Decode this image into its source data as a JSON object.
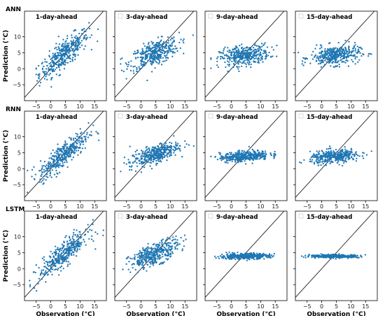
{
  "figure": {
    "colors": {
      "point": "#1f77b4",
      "identity_line": "#222222",
      "frame": "#000000",
      "legend_box": "#cccccc"
    },
    "xlabel": "Observation (°C)",
    "ylabel": "Prediction (°C)"
  },
  "chart_data": {
    "type": "scatter",
    "shared_axes": {
      "xlim": [
        -9,
        19
      ],
      "ylim": [
        -10,
        18
      ],
      "xticks": [
        -5,
        0,
        5,
        10,
        15
      ],
      "yticks": [
        -5,
        0,
        5,
        10
      ],
      "grid": false
    },
    "reference_line": "y = x",
    "rows": [
      {
        "model": "ANN",
        "panels": [
          {
            "title": "1-day-ahead",
            "fit": {
              "slope": 0.72,
              "intercept": 1.3,
              "noise": 2.1
            },
            "x_range": [
              -5,
              18
            ]
          },
          {
            "title": "3-day-ahead",
            "fit": {
              "slope": 0.32,
              "intercept": 3.3,
              "noise": 1.9
            },
            "x_range": [
              -7,
              18
            ]
          },
          {
            "title": "9-day-ahead",
            "fit": {
              "slope": 0.12,
              "intercept": 3.6,
              "noise": 1.5
            },
            "x_range": [
              -7,
              18
            ]
          },
          {
            "title": "15-day-ahead",
            "fit": {
              "slope": 0.08,
              "intercept": 3.8,
              "noise": 1.5
            },
            "x_range": [
              -8,
              18
            ]
          }
        ]
      },
      {
        "model": "RNN",
        "panels": [
          {
            "title": "1-day-ahead",
            "fit": {
              "slope": 0.72,
              "intercept": 1.2,
              "noise": 1.9
            },
            "x_range": [
              -8,
              18
            ]
          },
          {
            "title": "3-day-ahead",
            "fit": {
              "slope": 0.3,
              "intercept": 3.1,
              "noise": 1.4
            },
            "x_range": [
              -7,
              18
            ]
          },
          {
            "title": "9-day-ahead",
            "fit": {
              "slope": 0.07,
              "intercept": 3.6,
              "noise": 0.8
            },
            "x_range": [
              -7,
              15
            ]
          },
          {
            "title": "15-day-ahead",
            "fit": {
              "slope": 0.08,
              "intercept": 3.5,
              "noise": 1.0
            },
            "x_range": [
              -8,
              18
            ]
          }
        ]
      },
      {
        "model": "LSTM",
        "panels": [
          {
            "title": "1-day-ahead",
            "fit": {
              "slope": 0.68,
              "intercept": 1.5,
              "noise": 1.9
            },
            "x_range": [
              -8,
              18
            ]
          },
          {
            "title": "3-day-ahead",
            "fit": {
              "slope": 0.35,
              "intercept": 3.0,
              "noise": 1.6
            },
            "x_range": [
              -7,
              18
            ]
          },
          {
            "title": "9-day-ahead",
            "fit": {
              "slope": 0.02,
              "intercept": 3.8,
              "noise": 0.45
            },
            "x_range": [
              -7,
              18
            ]
          },
          {
            "title": "15-day-ahead",
            "fit": {
              "slope": 0.0,
              "intercept": 3.9,
              "noise": 0.25
            },
            "x_range": [
              -8,
              18
            ]
          }
        ]
      }
    ]
  }
}
